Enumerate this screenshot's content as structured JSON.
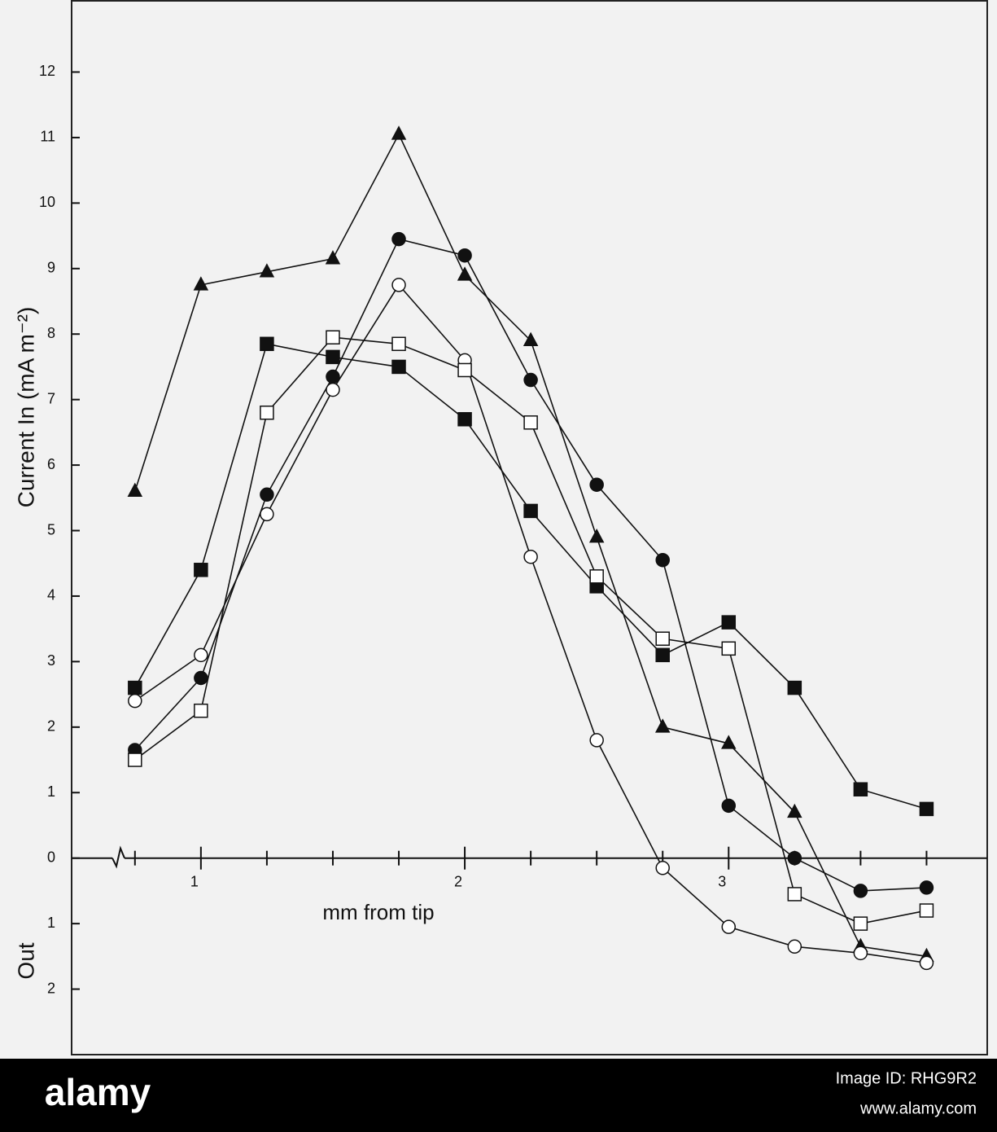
{
  "chart_data": {
    "type": "line",
    "y_label": "Current In (mA m⁻²)",
    "y_label_out": "Out",
    "x_label": "mm from tip",
    "x": [
      0.75,
      1.0,
      1.25,
      1.5,
      1.75,
      2.0,
      2.25,
      2.5,
      2.75,
      3.0,
      3.25,
      3.5,
      3.75
    ],
    "series": [
      {
        "marker": "triangle",
        "filled": true,
        "color": "#111111",
        "values": [
          5.6,
          8.75,
          8.95,
          9.15,
          11.05,
          8.9,
          7.9,
          4.9,
          2.0,
          1.75,
          0.7,
          -1.35,
          -1.5
        ]
      },
      {
        "marker": "circle",
        "filled": true,
        "color": "#111111",
        "values": [
          1.65,
          2.75,
          5.55,
          7.35,
          9.45,
          9.2,
          7.3,
          5.7,
          4.55,
          0.8,
          0.0,
          -0.5,
          -0.45
        ]
      },
      {
        "marker": "circle",
        "filled": false,
        "color": "#111111",
        "values": [
          2.4,
          3.1,
          5.25,
          7.15,
          8.75,
          7.6,
          4.6,
          1.8,
          -0.15,
          -1.05,
          -1.35,
          -1.45,
          -1.6
        ]
      },
      {
        "marker": "square",
        "filled": true,
        "color": "#111111",
        "values": [
          2.6,
          4.4,
          7.85,
          7.65,
          7.5,
          6.7,
          5.3,
          4.15,
          3.1,
          3.6,
          2.6,
          1.05,
          0.75
        ]
      },
      {
        "marker": "square",
        "filled": false,
        "color": "#111111",
        "values": [
          1.5,
          2.25,
          6.8,
          7.95,
          7.85,
          7.45,
          6.65,
          4.3,
          3.35,
          3.2,
          -0.55,
          -1.0,
          -0.8
        ]
      }
    ],
    "xlim": [
      0.51,
      3.98
    ],
    "xticks": [
      1,
      2,
      3
    ],
    "xminor_ticks": [
      0.75,
      1.25,
      1.5,
      1.75,
      2.25,
      2.5,
      2.75,
      3.25,
      3.5,
      3.75
    ],
    "ylim": [
      -3.0,
      13.1
    ],
    "yticks": [
      0,
      1,
      2,
      3,
      4,
      5,
      6,
      7,
      8,
      9,
      10,
      11,
      12,
      {
        "value": -1,
        "label": "1"
      },
      {
        "value": -2,
        "label": "2"
      }
    ],
    "grid": false
  },
  "footer": {
    "brand": "alamy",
    "image_id": "Image ID: RHG9R2",
    "url": "www.alamy.com"
  }
}
